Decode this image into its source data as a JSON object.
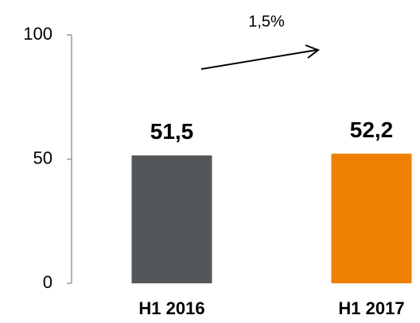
{
  "chart_data": {
    "type": "bar",
    "categories": [
      "H1 2016",
      "H1 2017"
    ],
    "values": [
      51.5,
      52.2
    ],
    "value_labels": [
      "51,5",
      "52,2"
    ],
    "colors": [
      "#545759",
      "#ee8100"
    ],
    "ylim": [
      0,
      100
    ],
    "yticks": [
      0,
      50,
      100
    ],
    "annotation": "1,5%"
  }
}
